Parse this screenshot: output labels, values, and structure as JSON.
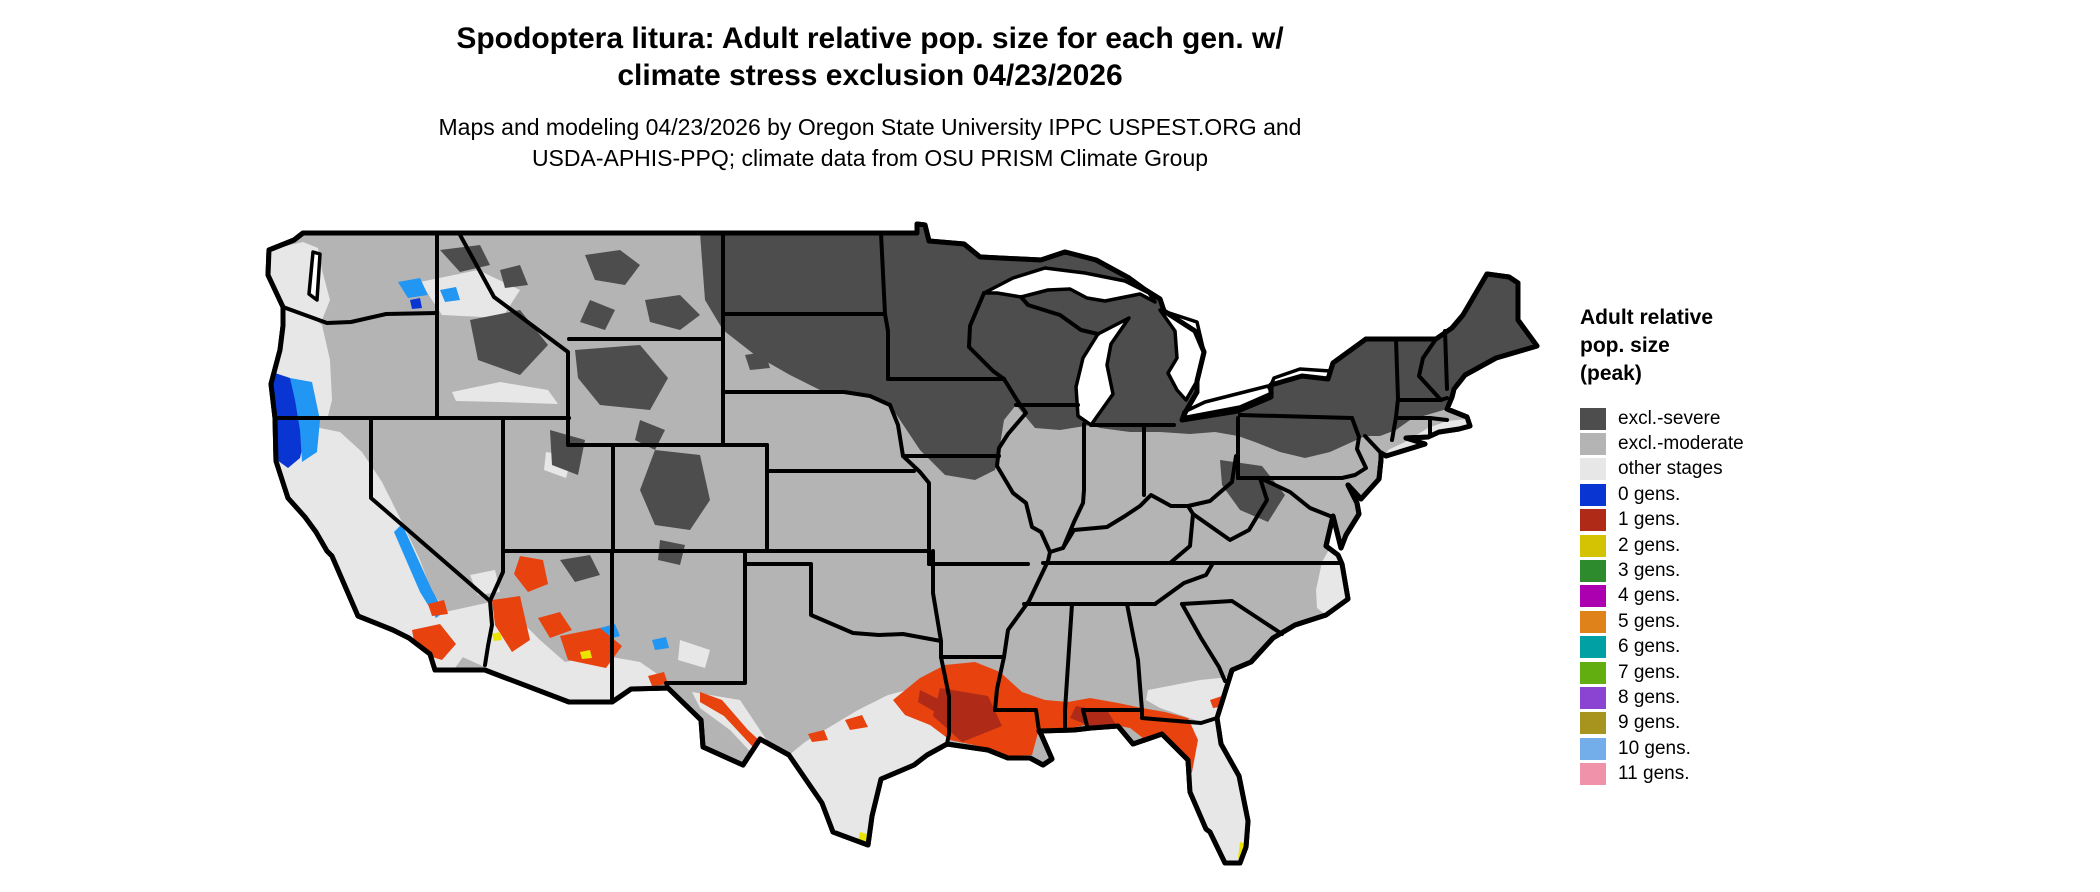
{
  "header": {
    "title_line1": "Spodoptera litura: Adult relative pop. size for each gen. w/",
    "title_line2": "climate stress exclusion 04/23/2026",
    "subtitle_line1": "Maps and modeling 04/23/2026 by Oregon State University IPPC USPEST.ORG and",
    "subtitle_line2": "USDA-APHIS-PPQ; climate data from OSU PRISM Climate Group"
  },
  "legend": {
    "title_line1": "Adult relative",
    "title_line2": "pop. size",
    "title_line3": "(peak)",
    "items": [
      {
        "label": "excl.-severe",
        "color": "#4d4d4d"
      },
      {
        "label": "excl.-moderate",
        "color": "#b4b4b4"
      },
      {
        "label": "other stages",
        "color": "#e7e7e7"
      },
      {
        "label": "0 gens.",
        "color": "#0936d2"
      },
      {
        "label": "1 gens.",
        "color": "#b02a18"
      },
      {
        "label": "2 gens.",
        "color": "#d4c303"
      },
      {
        "label": "3 gens.",
        "color": "#2d8a2d"
      },
      {
        "label": "4 gens.",
        "color": "#ac00b0"
      },
      {
        "label": "5 gens.",
        "color": "#e0821a"
      },
      {
        "label": "6 gens.",
        "color": "#00a0a4"
      },
      {
        "label": "7 gens.",
        "color": "#62ae10"
      },
      {
        "label": "8 gens.",
        "color": "#8b43d1"
      },
      {
        "label": "9 gens.",
        "color": "#a6941f"
      },
      {
        "label": "10 gens.",
        "color": "#73aeeb"
      },
      {
        "label": "11 gens.",
        "color": "#f192ab"
      }
    ]
  },
  "map": {
    "background": "#ffffff",
    "border_color": "#000000",
    "water_color": "#ffffff",
    "accent_colors": {
      "orange_blend": "#e8420e",
      "light_blue_blend": "#2196f3",
      "yellow_blend": "#ece300"
    }
  }
}
